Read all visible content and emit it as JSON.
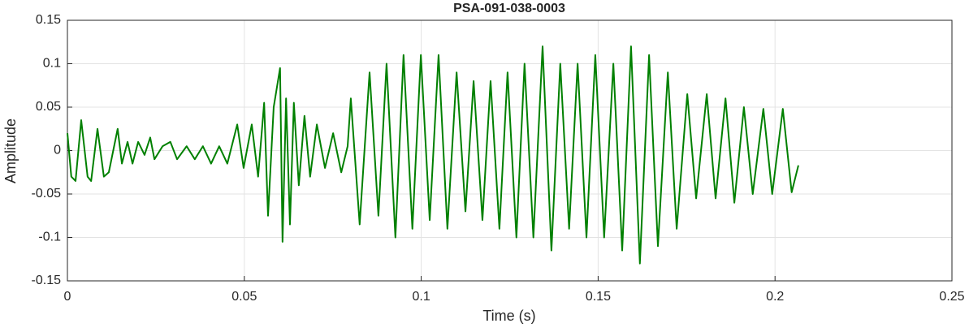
{
  "chart_data": {
    "type": "line",
    "title": "PSA-091-038-0003",
    "x_label": "Time (s)",
    "y_label": "Amplitude",
    "x": [
      0,
      0.0011,
      0.0023,
      0.0039,
      0.0057,
      0.0067,
      0.0085,
      0.0103,
      0.0117,
      0.0142,
      0.0154,
      0.017,
      0.0184,
      0.02,
      0.0218,
      0.0234,
      0.0246,
      0.0269,
      0.0291,
      0.031,
      0.0337,
      0.036,
      0.0383,
      0.0406,
      0.0429,
      0.0452,
      0.048,
      0.0498,
      0.0521,
      0.0539,
      0.0556,
      0.0567,
      0.0583,
      0.0601,
      0.0608,
      0.0618,
      0.0629,
      0.064,
      0.0654,
      0.067,
      0.0686,
      0.0705,
      0.0728,
      0.0751,
      0.0774,
      0.0792,
      0.0801,
      0.0826,
      0.0854,
      0.0879,
      0.0902,
      0.0927,
      0.095,
      0.0975,
      0.0999,
      0.1024,
      0.1049,
      0.1074,
      0.11,
      0.1125,
      0.1148,
      0.1173,
      0.1196,
      0.1221,
      0.1244,
      0.1269,
      0.1292,
      0.1317,
      0.1343,
      0.1368,
      0.1393,
      0.1418,
      0.1442,
      0.1467,
      0.1492,
      0.1517,
      0.1543,
      0.1568,
      0.1593,
      0.1618,
      0.1644,
      0.1669,
      0.1697,
      0.1722,
      0.1752,
      0.1777,
      0.1807,
      0.1832,
      0.186,
      0.1885,
      0.1912,
      0.1937,
      0.1967,
      0.1992,
      0.2022,
      0.2047,
      0.2066
    ],
    "series": [
      {
        "color": "#008000",
        "values": [
          0.02,
          -0.03,
          -0.035,
          0.035,
          -0.03,
          -0.035,
          0.025,
          -0.03,
          -0.025,
          0.025,
          -0.015,
          0.01,
          -0.015,
          0.01,
          -0.005,
          0.015,
          -0.01,
          0.005,
          0.01,
          -0.01,
          0.005,
          -0.01,
          0.005,
          -0.015,
          0.005,
          -0.015,
          0.03,
          -0.02,
          0.03,
          -0.03,
          0.055,
          -0.075,
          0.05,
          0.095,
          -0.105,
          0.06,
          -0.085,
          0.055,
          -0.04,
          0.04,
          -0.03,
          0.03,
          -0.02,
          0.02,
          -0.025,
          0.005,
          0.06,
          -0.085,
          0.09,
          -0.075,
          0.1,
          -0.1,
          0.11,
          -0.09,
          0.11,
          -0.08,
          0.11,
          -0.09,
          0.09,
          -0.07,
          0.08,
          -0.08,
          0.08,
          -0.09,
          0.09,
          -0.1,
          0.1,
          -0.1,
          0.12,
          -0.115,
          0.1,
          -0.09,
          0.1,
          -0.1,
          0.11,
          -0.1,
          0.1,
          -0.115,
          0.12,
          -0.13,
          0.11,
          -0.11,
          0.09,
          -0.09,
          0.065,
          -0.055,
          0.065,
          -0.055,
          0.06,
          -0.06,
          0.05,
          -0.05,
          0.048,
          -0.05,
          0.048,
          -0.048,
          -0.017
        ]
      }
    ],
    "xlim": [
      0,
      0.25
    ],
    "xticks": [
      0,
      0.05,
      0.1,
      0.15,
      0.2,
      0.25
    ],
    "ylim": [
      -0.15,
      0.15
    ],
    "yticks": [
      -0.15,
      -0.1,
      -0.05,
      0,
      0.05,
      0.1,
      0.15
    ],
    "grid": true
  }
}
